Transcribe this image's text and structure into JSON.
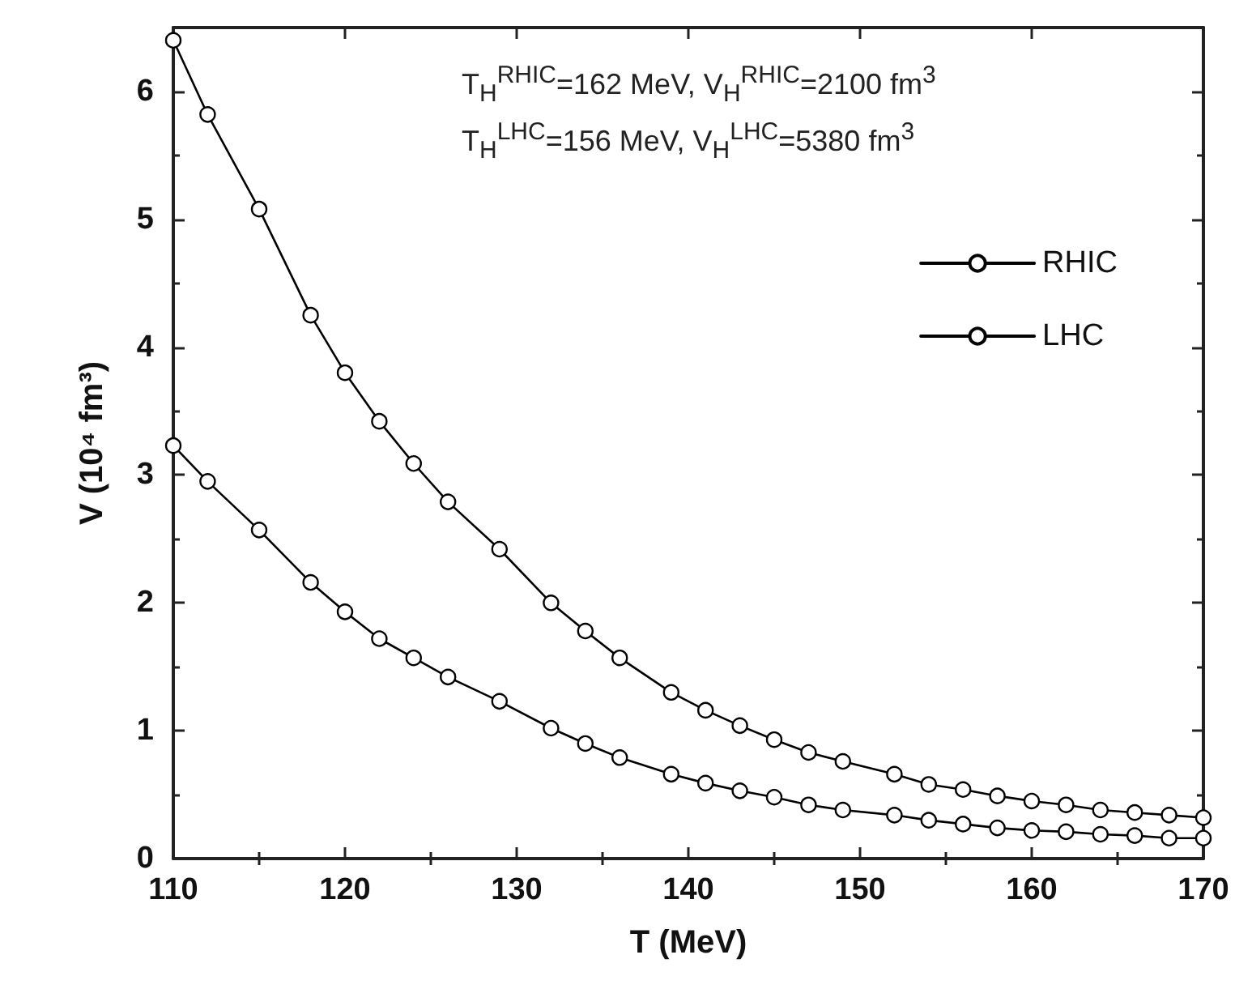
{
  "chart_data": {
    "type": "line",
    "xlabel": "T (MeV)",
    "ylabel": "V (10⁴ fm³)",
    "x": [
      110,
      112,
      115,
      118,
      120,
      122,
      124,
      126,
      129,
      132,
      134,
      136,
      139,
      141,
      143,
      145,
      147,
      149,
      152,
      154,
      156,
      158,
      160,
      162,
      164,
      166,
      168,
      170
    ],
    "series": [
      {
        "name": "RHIC",
        "color": "#000000",
        "marker": "circle",
        "values": [
          3.23,
          2.95,
          2.57,
          2.16,
          1.93,
          1.72,
          1.57,
          1.42,
          1.23,
          1.02,
          0.9,
          0.79,
          0.66,
          0.59,
          0.53,
          0.48,
          0.42,
          0.38,
          0.34,
          0.3,
          0.27,
          0.24,
          0.22,
          0.21,
          0.19,
          0.18,
          0.16,
          0.16
        ]
      },
      {
        "name": "LHC",
        "color": "#000000",
        "marker": "circle",
        "values": [
          6.4,
          5.82,
          5.08,
          4.25,
          3.8,
          3.42,
          3.09,
          2.79,
          2.42,
          2.0,
          1.78,
          1.57,
          1.3,
          1.16,
          1.04,
          0.93,
          0.83,
          0.76,
          0.66,
          0.58,
          0.54,
          0.49,
          0.45,
          0.42,
          0.38,
          0.36,
          0.34,
          0.32
        ]
      }
    ],
    "xlim": [
      110,
      170
    ],
    "xticks": [
      110,
      120,
      130,
      140,
      150,
      160,
      170
    ],
    "ylim": [
      0,
      6.5
    ],
    "yticks": [
      0,
      1,
      2,
      3,
      4,
      5,
      6
    ],
    "annotations": [
      "T$_{H}$$^{RHIC}$=162 MeV, V$_{H}$$^{RHIC}$=2100 fm$^{3}$",
      "T$_{H}$$^{LHC}$=156 MeV, V$_{H}$$^{LHC}$=5380 fm$^{3}$"
    ],
    "legend": "top right",
    "grid": false,
    "line_style": "solid"
  }
}
